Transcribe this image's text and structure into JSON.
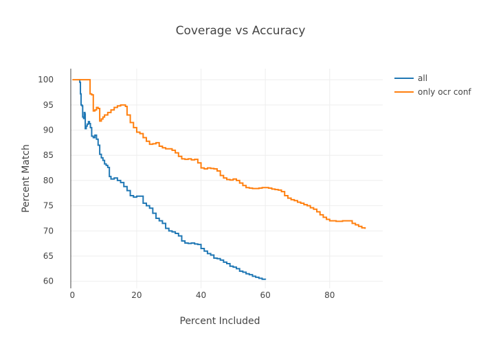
{
  "chart_data": {
    "type": "line",
    "title": "Coverage vs Accuracy",
    "xlabel": "Percent Included",
    "ylabel": "Percent Match",
    "xlim": [
      -0.5,
      96.5
    ],
    "ylim": [
      58.6,
      102.2
    ],
    "xticks": [
      0,
      20,
      40,
      60,
      80
    ],
    "yticks": [
      60,
      65,
      70,
      75,
      80,
      85,
      90,
      95,
      100
    ],
    "grid": true,
    "legend": "top-right",
    "series": [
      {
        "name": "all",
        "color": "#1f77b4",
        "points": [
          [
            2.0,
            100
          ],
          [
            2.3,
            99.5
          ],
          [
            2.5,
            97.2
          ],
          [
            2.7,
            95
          ],
          [
            3.0,
            94.8
          ],
          [
            3.2,
            92.6
          ],
          [
            3.5,
            92.3
          ],
          [
            3.7,
            93.5
          ],
          [
            3.9,
            93.2
          ],
          [
            4.0,
            90.3
          ],
          [
            4.3,
            90.8
          ],
          [
            4.6,
            91.2
          ],
          [
            5.0,
            91.7
          ],
          [
            5.3,
            91.3
          ],
          [
            5.6,
            90.5
          ],
          [
            6.0,
            88.8
          ],
          [
            6.5,
            88.5
          ],
          [
            7.0,
            89.0
          ],
          [
            7.5,
            88.2
          ],
          [
            8.0,
            87.0
          ],
          [
            8.5,
            85.2
          ],
          [
            9.0,
            84.5
          ],
          [
            9.5,
            84.0
          ],
          [
            10.0,
            83.3
          ],
          [
            10.5,
            83.0
          ],
          [
            11.0,
            82.6
          ],
          [
            11.5,
            80.8
          ],
          [
            12.0,
            80.3
          ],
          [
            13.0,
            80.5
          ],
          [
            14.0,
            80.0
          ],
          [
            15.0,
            79.6
          ],
          [
            16.0,
            78.8
          ],
          [
            17.0,
            78.0
          ],
          [
            18.0,
            77.0
          ],
          [
            19.0,
            76.7
          ],
          [
            20.0,
            76.9
          ],
          [
            21.0,
            76.9
          ],
          [
            22.0,
            75.5
          ],
          [
            23.0,
            75.0
          ],
          [
            24.0,
            74.5
          ],
          [
            25.0,
            73.5
          ],
          [
            26.0,
            72.5
          ],
          [
            27.0,
            72.0
          ],
          [
            28.0,
            71.5
          ],
          [
            29.0,
            70.5
          ],
          [
            30.0,
            70.0
          ],
          [
            31.0,
            69.8
          ],
          [
            32.0,
            69.5
          ],
          [
            33.0,
            69.0
          ],
          [
            34.0,
            68.0
          ],
          [
            35.0,
            67.6
          ],
          [
            36.0,
            67.5
          ],
          [
            37.0,
            67.6
          ],
          [
            38.0,
            67.4
          ],
          [
            39.0,
            67.3
          ],
          [
            40.0,
            66.5
          ],
          [
            41.0,
            66.0
          ],
          [
            42.0,
            65.5
          ],
          [
            43.0,
            65.2
          ],
          [
            44.0,
            64.6
          ],
          [
            45.0,
            64.5
          ],
          [
            46.0,
            64.2
          ],
          [
            47.0,
            63.8
          ],
          [
            48.0,
            63.5
          ],
          [
            49.0,
            63.0
          ],
          [
            50.0,
            62.8
          ],
          [
            51.0,
            62.5
          ],
          [
            52.0,
            62.0
          ],
          [
            53.0,
            61.8
          ],
          [
            54.0,
            61.5
          ],
          [
            55.0,
            61.3
          ],
          [
            56.0,
            61.0
          ],
          [
            57.0,
            60.8
          ],
          [
            58.0,
            60.6
          ],
          [
            59.0,
            60.4
          ],
          [
            60.0,
            60.3
          ]
        ]
      },
      {
        "name": "only ocr conf",
        "color": "#ff7f0e",
        "points": [
          [
            0.0,
            100
          ],
          [
            5.0,
            100
          ],
          [
            5.5,
            97.2
          ],
          [
            6.0,
            97.0
          ],
          [
            6.5,
            93.8
          ],
          [
            7.0,
            94.0
          ],
          [
            7.5,
            94.5
          ],
          [
            8.0,
            94.3
          ],
          [
            8.5,
            91.8
          ],
          [
            9.0,
            92.2
          ],
          [
            9.5,
            92.6
          ],
          [
            10.0,
            93.0
          ],
          [
            11.0,
            93.5
          ],
          [
            12.0,
            94.0
          ],
          [
            13.0,
            94.5
          ],
          [
            14.0,
            94.8
          ],
          [
            15.0,
            95.0
          ],
          [
            16.0,
            95.0
          ],
          [
            16.5,
            94.7
          ],
          [
            17.0,
            93.0
          ],
          [
            18.0,
            91.5
          ],
          [
            19.0,
            90.5
          ],
          [
            20.0,
            89.6
          ],
          [
            21.0,
            89.3
          ],
          [
            22.0,
            88.5
          ],
          [
            23.0,
            87.8
          ],
          [
            24.0,
            87.2
          ],
          [
            25.0,
            87.3
          ],
          [
            26.0,
            87.5
          ],
          [
            27.0,
            86.8
          ],
          [
            28.0,
            86.5
          ],
          [
            29.0,
            86.3
          ],
          [
            30.0,
            86.3
          ],
          [
            31.0,
            86.0
          ],
          [
            32.0,
            85.5
          ],
          [
            33.0,
            84.8
          ],
          [
            34.0,
            84.3
          ],
          [
            35.0,
            84.2
          ],
          [
            36.0,
            84.3
          ],
          [
            37.0,
            84.1
          ],
          [
            38.0,
            84.2
          ],
          [
            39.0,
            83.5
          ],
          [
            40.0,
            82.5
          ],
          [
            41.0,
            82.3
          ],
          [
            42.0,
            82.5
          ],
          [
            43.0,
            82.4
          ],
          [
            44.0,
            82.3
          ],
          [
            45.0,
            81.9
          ],
          [
            46.0,
            81.0
          ],
          [
            47.0,
            80.5
          ],
          [
            48.0,
            80.2
          ],
          [
            49.0,
            80.1
          ],
          [
            50.0,
            80.3
          ],
          [
            51.0,
            80.0
          ],
          [
            52.0,
            79.5
          ],
          [
            53.0,
            79.0
          ],
          [
            54.0,
            78.6
          ],
          [
            55.0,
            78.5
          ],
          [
            56.0,
            78.4
          ],
          [
            57.0,
            78.4
          ],
          [
            58.0,
            78.5
          ],
          [
            59.0,
            78.6
          ],
          [
            60.0,
            78.6
          ],
          [
            61.0,
            78.5
          ],
          [
            62.0,
            78.3
          ],
          [
            63.0,
            78.2
          ],
          [
            64.0,
            78.1
          ],
          [
            65.0,
            77.8
          ],
          [
            66.0,
            77.0
          ],
          [
            67.0,
            76.5
          ],
          [
            68.0,
            76.2
          ],
          [
            69.0,
            76.0
          ],
          [
            70.0,
            75.7
          ],
          [
            71.0,
            75.5
          ],
          [
            72.0,
            75.2
          ],
          [
            73.0,
            75.0
          ],
          [
            74.0,
            74.6
          ],
          [
            75.0,
            74.3
          ],
          [
            76.0,
            73.8
          ],
          [
            77.0,
            73.2
          ],
          [
            78.0,
            72.7
          ],
          [
            79.0,
            72.3
          ],
          [
            80.0,
            72.0
          ],
          [
            81.0,
            72.0
          ],
          [
            82.0,
            71.9
          ],
          [
            83.0,
            71.9
          ],
          [
            84.0,
            72.0
          ],
          [
            85.0,
            72.0
          ],
          [
            86.0,
            72.0
          ],
          [
            87.0,
            71.5
          ],
          [
            88.0,
            71.2
          ],
          [
            89.0,
            70.9
          ],
          [
            90.0,
            70.6
          ],
          [
            91.0,
            70.4
          ]
        ]
      }
    ]
  }
}
